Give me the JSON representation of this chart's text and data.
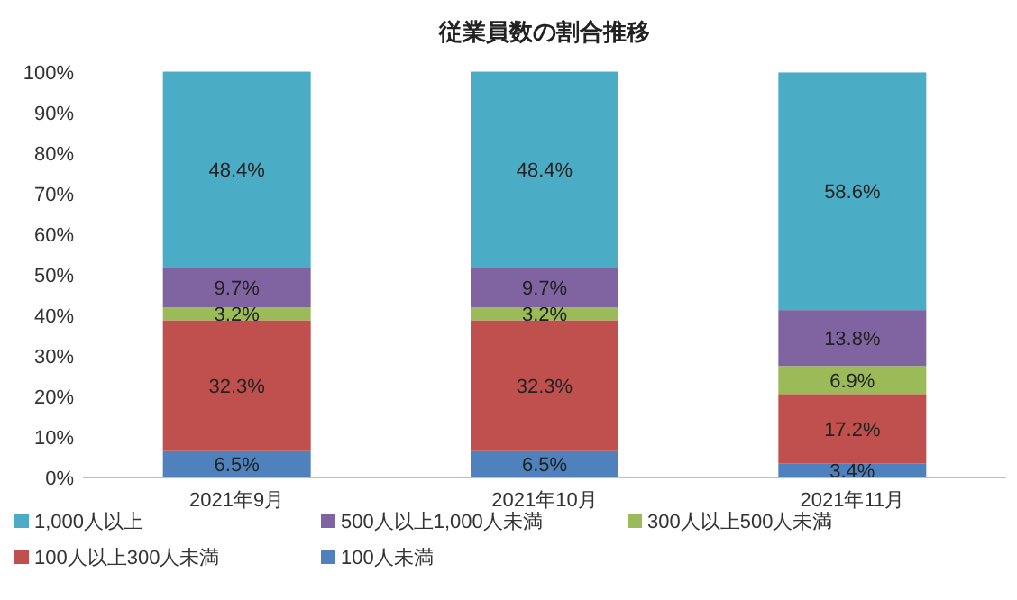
{
  "chart_data": {
    "type": "bar",
    "stacked": true,
    "title": "従業員数の割合推移",
    "categories": [
      "2021年9月",
      "2021年10月",
      "2021年11月"
    ],
    "series": [
      {
        "name": "100人未満",
        "color": "#4f81bd",
        "values": [
          6.5,
          6.5,
          3.4
        ],
        "value_labels": [
          "6.5%",
          "6.5%",
          "3.4%"
        ]
      },
      {
        "name": "100人以上300人未満",
        "color": "#c0504d",
        "values": [
          32.3,
          32.3,
          17.2
        ],
        "value_labels": [
          "32.3%",
          "32.3%",
          "17.2%"
        ]
      },
      {
        "name": "300人以上500人未満",
        "color": "#9bbb59",
        "values": [
          3.2,
          3.2,
          6.9
        ],
        "value_labels": [
          "3.2%",
          "3.2%",
          "6.9%"
        ]
      },
      {
        "name": "500人以上1,000人未満",
        "color": "#8064a2",
        "values": [
          9.7,
          9.7,
          13.8
        ],
        "value_labels": [
          "9.7%",
          "9.7%",
          "13.8%"
        ]
      },
      {
        "name": "1,000人以上",
        "color": "#4bacc6",
        "values": [
          48.4,
          48.4,
          58.6
        ],
        "value_labels": [
          "48.4%",
          "48.4%",
          "58.6%"
        ]
      }
    ],
    "ylim": [
      0,
      100
    ],
    "yticks": [
      {
        "value": 0,
        "label": "0%"
      },
      {
        "value": 10,
        "label": "10%"
      },
      {
        "value": 20,
        "label": "20%"
      },
      {
        "value": 30,
        "label": "30%"
      },
      {
        "value": 40,
        "label": "40%"
      },
      {
        "value": 50,
        "label": "50%"
      },
      {
        "value": 60,
        "label": "60%"
      },
      {
        "value": 70,
        "label": "70%"
      },
      {
        "value": 80,
        "label": "80%"
      },
      {
        "value": 90,
        "label": "90%"
      },
      {
        "value": 100,
        "label": "100%"
      }
    ],
    "legend": "bottom",
    "grid": false
  }
}
